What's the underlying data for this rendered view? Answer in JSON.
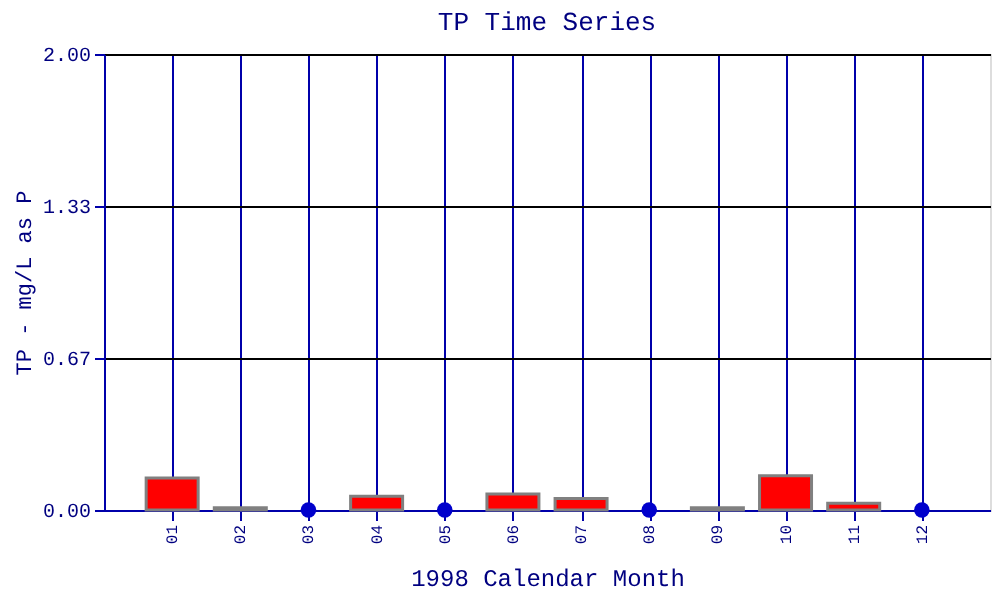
{
  "chart_data": {
    "type": "bar",
    "title": "TP Time Series",
    "xlabel": "1998 Calendar Month",
    "ylabel": "TP - mg/L as P",
    "categories": [
      "01",
      "02",
      "03",
      "04",
      "05",
      "06",
      "07",
      "08",
      "09",
      "10",
      "11",
      "12"
    ],
    "series": [
      {
        "type": "bar",
        "color": "#ff0000",
        "values": [
          0.14,
          0.01,
          null,
          0.06,
          null,
          0.07,
          0.05,
          null,
          0.01,
          0.15,
          0.03,
          null
        ]
      },
      {
        "type": "scatter",
        "color": "#0000cc",
        "marker": "circle",
        "x": [
          "03",
          "05",
          "08",
          "12"
        ],
        "values": [
          0,
          0,
          0,
          0
        ]
      }
    ],
    "ylim": [
      0,
      2
    ],
    "yticks": [
      {
        "value": 0,
        "label": "0.00"
      },
      {
        "value": 0.667,
        "label": "0.67"
      },
      {
        "value": 1.333,
        "label": "1.33"
      },
      {
        "value": 2,
        "label": "2.00"
      }
    ],
    "grid": true
  }
}
